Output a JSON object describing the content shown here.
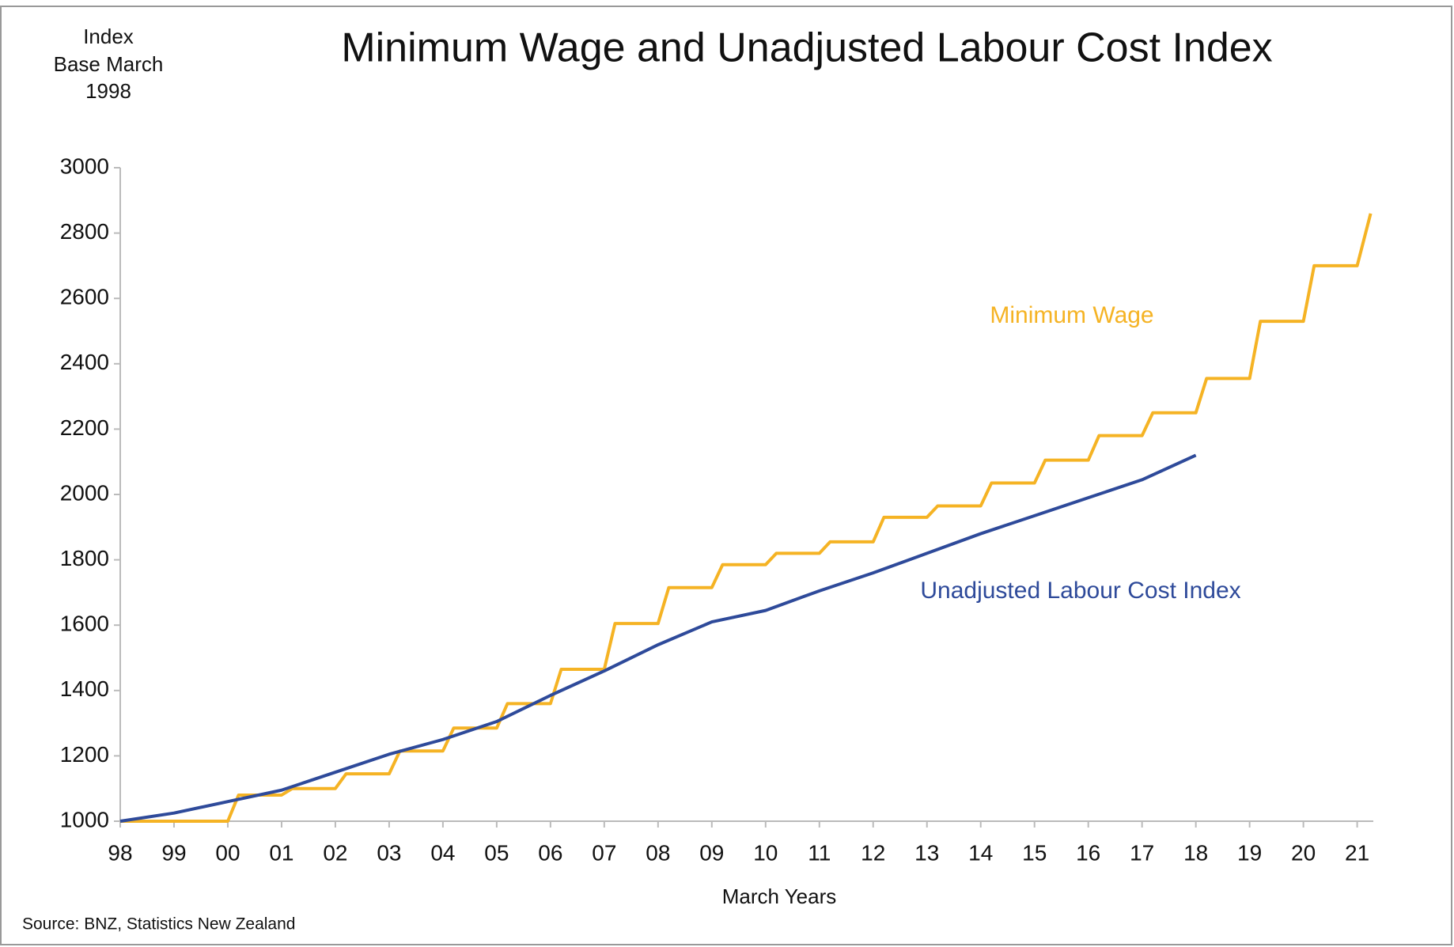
{
  "chart_data": {
    "type": "line",
    "title": "Minimum Wage and Unadjusted Labour Cost Index",
    "y_axis_label": [
      "Index",
      "Base March",
      "1998"
    ],
    "x_axis_label": "March Years",
    "source": "Source: BNZ, Statistics New Zealand",
    "xlim": [
      1998,
      2021.3
    ],
    "xticks": [
      {
        "value": 1998,
        "label": "98"
      },
      {
        "value": 1999,
        "label": "99"
      },
      {
        "value": 2000,
        "label": "00"
      },
      {
        "value": 2001,
        "label": "01"
      },
      {
        "value": 2002,
        "label": "02"
      },
      {
        "value": 2003,
        "label": "03"
      },
      {
        "value": 2004,
        "label": "04"
      },
      {
        "value": 2005,
        "label": "05"
      },
      {
        "value": 2006,
        "label": "06"
      },
      {
        "value": 2007,
        "label": "07"
      },
      {
        "value": 2008,
        "label": "08"
      },
      {
        "value": 2009,
        "label": "09"
      },
      {
        "value": 2010,
        "label": "10"
      },
      {
        "value": 2011,
        "label": "11"
      },
      {
        "value": 2012,
        "label": "12"
      },
      {
        "value": 2013,
        "label": "13"
      },
      {
        "value": 2014,
        "label": "14"
      },
      {
        "value": 2015,
        "label": "15"
      },
      {
        "value": 2016,
        "label": "16"
      },
      {
        "value": 2017,
        "label": "17"
      },
      {
        "value": 2018,
        "label": "18"
      },
      {
        "value": 2019,
        "label": "19"
      },
      {
        "value": 2020,
        "label": "20"
      },
      {
        "value": 2021,
        "label": "21"
      }
    ],
    "ylim": [
      1000,
      3000
    ],
    "yticks": [
      1000,
      1200,
      1400,
      1600,
      1800,
      2000,
      2200,
      2400,
      2600,
      2800,
      3000
    ],
    "series": [
      {
        "name": "Minimum Wage",
        "color": "#f5b324",
        "x": [
          1998,
          2000,
          2000.2,
          2001,
          2001.2,
          2002,
          2002.2,
          2003,
          2003.2,
          2004,
          2004.2,
          2005,
          2005.2,
          2006,
          2006.2,
          2007,
          2007.2,
          2008,
          2008.2,
          2009,
          2009.2,
          2010,
          2010.2,
          2011,
          2011.2,
          2012,
          2012.2,
          2013,
          2013.2,
          2014,
          2014.2,
          2015,
          2015.2,
          2016,
          2016.2,
          2017,
          2017.2,
          2018,
          2018.2,
          2019,
          2019.2,
          2020,
          2020.2,
          2021,
          2021.25
        ],
        "values": [
          1000,
          1000,
          1080,
          1080,
          1100,
          1100,
          1145,
          1145,
          1215,
          1215,
          1285,
          1285,
          1360,
          1360,
          1465,
          1465,
          1605,
          1605,
          1715,
          1715,
          1785,
          1785,
          1820,
          1820,
          1855,
          1855,
          1930,
          1930,
          1965,
          1965,
          2035,
          2035,
          2105,
          2105,
          2180,
          2180,
          2250,
          2250,
          2355,
          2355,
          2530,
          2530,
          2700,
          2700,
          2860
        ]
      },
      {
        "name": "Unadjusted Labour Cost Index",
        "color": "#2e4a9a",
        "x": [
          1998,
          1999,
          2000,
          2001,
          2002,
          2003,
          2004,
          2005,
          2006,
          2007,
          2008,
          2009,
          2010,
          2011,
          2012,
          2013,
          2014,
          2015,
          2016,
          2017,
          2018
        ],
        "values": [
          1000,
          1025,
          1060,
          1095,
          1150,
          1205,
          1250,
          1305,
          1385,
          1460,
          1540,
          1610,
          1645,
          1705,
          1760,
          1820,
          1880,
          1935,
          1990,
          2045,
          2120
        ]
      }
    ]
  }
}
